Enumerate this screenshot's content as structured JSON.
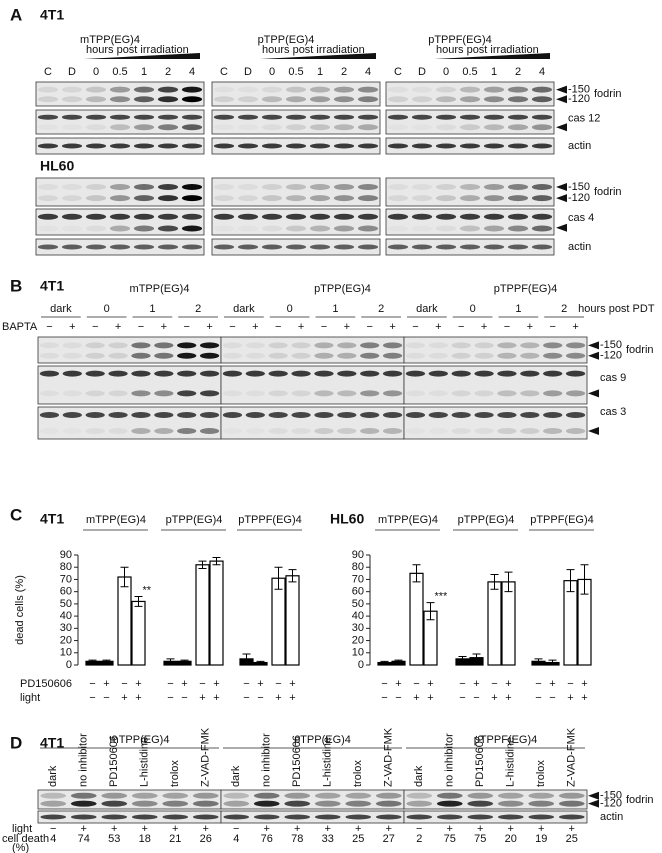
{
  "panel_a": {
    "label": "A",
    "cell_line_top": "4T1",
    "cell_line_bottom": "HL60",
    "groups": [
      "mTPP(EG)4",
      "pTPP(EG)4",
      "pTPPF(EG)4"
    ],
    "time_label": "hours post irradiation",
    "lanes": [
      "C",
      "D",
      "0",
      "0.5",
      "1",
      "2",
      "4"
    ],
    "markers": [
      "-150",
      "-120"
    ],
    "rows_top": [
      "fodrin",
      "cas 12",
      "actin"
    ],
    "rows_bottom": [
      "fodrin",
      "cas 4",
      "actin"
    ]
  },
  "panel_b": {
    "label": "B",
    "cell_line": "4T1",
    "groups": [
      "mTPP(EG)4",
      "pTPP(EG)4",
      "pTPPF(EG)4"
    ],
    "times": [
      "dark",
      "0",
      "1",
      "2"
    ],
    "time_unit": "hours post PDT",
    "treatment": "BAPTA",
    "signs": [
      "−",
      "+"
    ],
    "markers": [
      "-150",
      "-120"
    ],
    "rows": [
      "fodrin",
      "cas 9",
      "cas 3"
    ]
  },
  "panel_c": {
    "label": "C",
    "ylabel": "dead cells (%)",
    "row_labels": [
      "PD150606",
      "light"
    ],
    "pd_signs": [
      "−",
      "+",
      "−",
      "+"
    ],
    "light_signs": [
      "−",
      "−",
      "+",
      "+"
    ]
  },
  "chart_data": [
    {
      "type": "bar",
      "title": "4T1",
      "groups": [
        "mTPP(EG)4",
        "pTPP(EG)4",
        "pTPPF(EG)4"
      ],
      "values": [
        3,
        3,
        72,
        52,
        3,
        3,
        82,
        85,
        5,
        2,
        71,
        73
      ],
      "errors": [
        1,
        1,
        8,
        4,
        2,
        1,
        3,
        3,
        4,
        1,
        9,
        5
      ],
      "colors": [
        "#000000",
        "#000000",
        "#ffffff",
        "#ffffff",
        "#000000",
        "#000000",
        "#ffffff",
        "#ffffff",
        "#000000",
        "#000000",
        "#ffffff",
        "#ffffff"
      ],
      "annotations": [
        {
          "index": 3,
          "text": "**"
        }
      ],
      "ylim": [
        0,
        90
      ],
      "yticks": [
        0,
        10,
        20,
        30,
        40,
        50,
        60,
        70,
        80,
        90
      ]
    },
    {
      "type": "bar",
      "title": "HL60",
      "groups": [
        "mTPP(EG)4",
        "pTPP(EG)4",
        "pTPPF(EG)4"
      ],
      "values": [
        2,
        3,
        75,
        44,
        5,
        6,
        68,
        68,
        3,
        2,
        69,
        70
      ],
      "errors": [
        1,
        1,
        7,
        7,
        2,
        3,
        6,
        8,
        2,
        2,
        9,
        12
      ],
      "colors": [
        "#000000",
        "#000000",
        "#ffffff",
        "#ffffff",
        "#000000",
        "#000000",
        "#ffffff",
        "#ffffff",
        "#000000",
        "#000000",
        "#ffffff",
        "#ffffff"
      ],
      "annotations": [
        {
          "index": 3,
          "text": "***"
        }
      ],
      "ylim": [
        0,
        90
      ],
      "yticks": [
        0,
        10,
        20,
        30,
        40,
        50,
        60,
        70,
        80,
        90
      ]
    }
  ],
  "panel_d": {
    "label": "D",
    "cell_line": "4T1",
    "groups": [
      "mTPP(EG)4",
      "pTPP(EG)4",
      "pTPPF(EG)4"
    ],
    "lanes": [
      "dark",
      "no inhibitor",
      "PD150606",
      "L-histidine",
      "trolox",
      "Z-VAD-FMK"
    ],
    "light_label": "light",
    "light_signs": [
      "−",
      "+",
      "+",
      "+",
      "+",
      "+"
    ],
    "cell_death_label": "cell death",
    "cell_death_unit": "(%)",
    "cell_death": [
      [
        4,
        74,
        53,
        18,
        21,
        26
      ],
      [
        4,
        76,
        78,
        33,
        25,
        27
      ],
      [
        2,
        75,
        75,
        20,
        19,
        25
      ]
    ],
    "markers": [
      "-150",
      "-120"
    ],
    "rows": [
      "fodrin",
      "actin"
    ]
  }
}
